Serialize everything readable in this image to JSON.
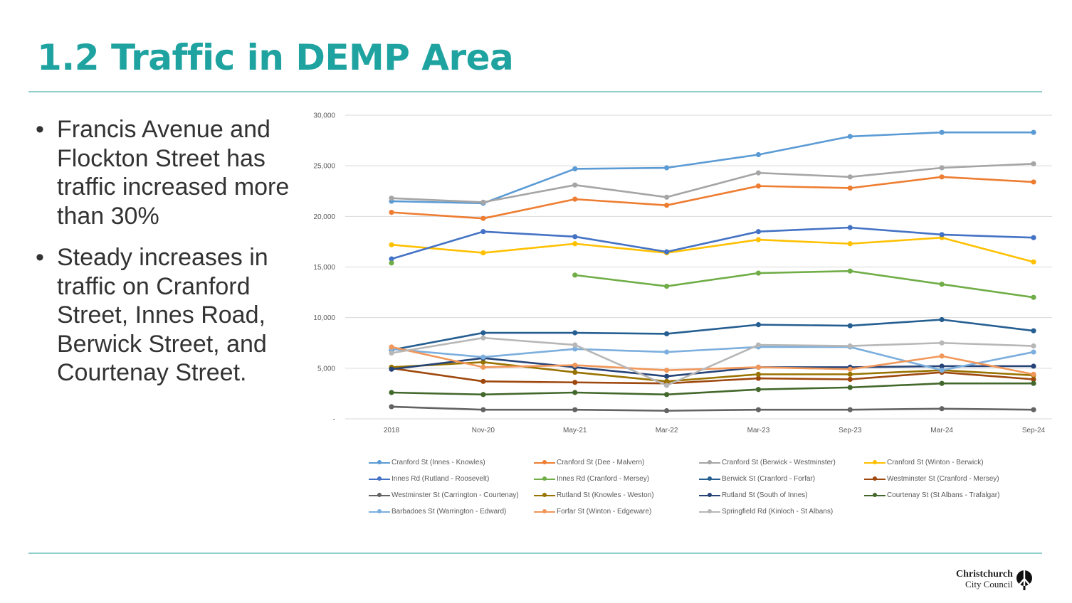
{
  "slide": {
    "title": "1.2 Traffic in DEMP Area",
    "bullets": [
      "Francis Avenue and Flockton Street has traffic increased more than 30%",
      "Steady increases in traffic on Cranford Street, Innes Road, Berwick Street, and Courtenay Street."
    ],
    "logo": {
      "line1": "Christchurch",
      "line2": "City Council"
    }
  },
  "chart_data": {
    "type": "line",
    "title": "",
    "xlabel": "",
    "ylabel": "",
    "categories": [
      "2018",
      "Nov-20",
      "May-21",
      "Mar-22",
      "Mar-23",
      "Sep-23",
      "Mar-24",
      "Sep-24"
    ],
    "ylim": [
      0,
      30000
    ],
    "yticks": [
      0,
      5000,
      10000,
      15000,
      20000,
      25000,
      30000
    ],
    "ytick_labels": [
      "-",
      "5,000",
      "10,000",
      "15,000",
      "20,000",
      "25,000",
      "30,000"
    ],
    "grid": true,
    "legend_position": "bottom",
    "series": [
      {
        "name": "Cranford St (Innes - Knowles)",
        "color": "#5b9bd5",
        "values": [
          21500,
          21300,
          24700,
          24800,
          26100,
          27900,
          28300,
          28300
        ]
      },
      {
        "name": "Cranford St (Dee - Malvern)",
        "color": "#ed7d31",
        "values": [
          20400,
          19800,
          21700,
          21100,
          23000,
          22800,
          23900,
          23400
        ]
      },
      {
        "name": "Cranford St (Berwick - Westminster)",
        "color": "#a5a5a5",
        "values": [
          21800,
          21400,
          23100,
          21900,
          24300,
          23900,
          24800,
          25200
        ]
      },
      {
        "name": "Cranford St (Winton - Berwick)",
        "color": "#ffc000",
        "values": [
          17200,
          16400,
          17300,
          16400,
          17700,
          17300,
          17900,
          15500
        ]
      },
      {
        "name": "Innes Rd (Rutland - Roosevelt)",
        "color": "#4472c4",
        "values": [
          15800,
          18500,
          18000,
          16500,
          18500,
          18900,
          18200,
          17900
        ]
      },
      {
        "name": "Innes Rd (Cranford - Mersey)",
        "color": "#70ad47",
        "values": [
          15400,
          null,
          14200,
          13100,
          14400,
          14600,
          13300,
          12000
        ]
      },
      {
        "name": "Berwick St (Cranford - Forfar)",
        "color": "#255e91",
        "values": [
          6800,
          8500,
          8500,
          8400,
          9300,
          9200,
          9800,
          8700
        ]
      },
      {
        "name": "Westminster St (Cranford - Mersey)",
        "color": "#9e480e",
        "values": [
          5000,
          3700,
          3600,
          3500,
          4000,
          3900,
          4600,
          3900
        ]
      },
      {
        "name": "Westminster St (Carrington - Courtenay)",
        "color": "#636363",
        "values": [
          1200,
          900,
          900,
          800,
          900,
          900,
          1000,
          900
        ]
      },
      {
        "name": "Rutland St (Knowles - Weston)",
        "color": "#997300",
        "values": [
          5100,
          5600,
          4600,
          3700,
          4400,
          4400,
          4800,
          4300
        ]
      },
      {
        "name": "Rutland St (South of Innes)",
        "color": "#264478",
        "values": [
          4900,
          6000,
          5100,
          4200,
          5100,
          5100,
          5200,
          5200
        ]
      },
      {
        "name": "Courtenay St (St Albans - Trafalgar)",
        "color": "#43682b",
        "values": [
          2600,
          2400,
          2600,
          2400,
          2900,
          3100,
          3500,
          3500
        ]
      },
      {
        "name": "Barbadoes St (Warrington - Edward)",
        "color": "#7cafdd",
        "values": [
          6900,
          6100,
          6900,
          6600,
          7100,
          7100,
          4800,
          6600
        ]
      },
      {
        "name": "Forfar St (Winton - Edgeware)",
        "color": "#f1975a",
        "values": [
          7100,
          5100,
          5300,
          4800,
          5100,
          4900,
          6200,
          4400
        ]
      },
      {
        "name": "Springfield Rd (Kinloch - St Albans)",
        "color": "#b7b7b7",
        "values": [
          6500,
          8000,
          7300,
          3300,
          7300,
          7200,
          7500,
          7200
        ]
      }
    ]
  }
}
